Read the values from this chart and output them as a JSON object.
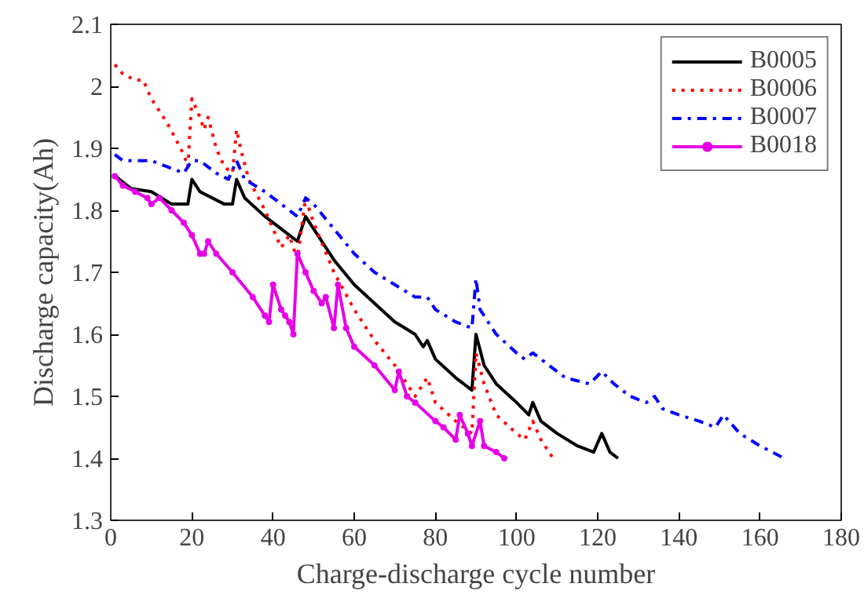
{
  "chart_data": {
    "type": "line",
    "xlabel": "Charge-discharge cycle number",
    "ylabel": "Discharge capacity(Ah)",
    "xlim": [
      0,
      180
    ],
    "xticks": [
      0,
      20,
      40,
      60,
      80,
      100,
      120,
      140,
      160,
      180
    ],
    "ylim": [
      1.3,
      2.1
    ],
    "yticks": [
      1.3,
      1.4,
      1.5,
      1.6,
      1.7,
      1.8,
      1.9,
      2,
      2.1
    ],
    "grid": false,
    "legend": "top right",
    "series": [
      {
        "name": "B0005",
        "color": "#000000",
        "line_style": "solid",
        "x": [
          1,
          5,
          10,
          15,
          19,
          20,
          22,
          28,
          30,
          31,
          33,
          38,
          42,
          46,
          48,
          50,
          55,
          60,
          65,
          70,
          75,
          77,
          78,
          80,
          85,
          89,
          90,
          92,
          95,
          100,
          103,
          104,
          106,
          110,
          115,
          119,
          121,
          123,
          125
        ],
        "values": [
          1.856,
          1.835,
          1.83,
          1.81,
          1.81,
          1.85,
          1.83,
          1.81,
          1.81,
          1.85,
          1.82,
          1.79,
          1.77,
          1.75,
          1.79,
          1.77,
          1.72,
          1.68,
          1.65,
          1.62,
          1.6,
          1.58,
          1.59,
          1.56,
          1.53,
          1.51,
          1.6,
          1.55,
          1.52,
          1.49,
          1.47,
          1.49,
          1.46,
          1.44,
          1.42,
          1.41,
          1.44,
          1.41,
          1.4
        ]
      },
      {
        "name": "B0006",
        "color": "#ff0000",
        "line_style": "dotted",
        "x": [
          1,
          3,
          6,
          8,
          10,
          14,
          18,
          19,
          20,
          22,
          23,
          24,
          26,
          28,
          30,
          31,
          32,
          34,
          38,
          42,
          44,
          46,
          48,
          50,
          55,
          60,
          65,
          70,
          75,
          78,
          80,
          85,
          89,
          90,
          92,
          95,
          100,
          102,
          104,
          106,
          109
        ],
        "values": [
          2.035,
          2.02,
          2.01,
          2.01,
          1.98,
          1.94,
          1.89,
          1.87,
          1.98,
          1.95,
          1.93,
          1.95,
          1.9,
          1.87,
          1.86,
          1.93,
          1.9,
          1.85,
          1.8,
          1.74,
          1.76,
          1.72,
          1.82,
          1.78,
          1.7,
          1.64,
          1.59,
          1.55,
          1.5,
          1.53,
          1.49,
          1.46,
          1.44,
          1.57,
          1.52,
          1.47,
          1.44,
          1.43,
          1.46,
          1.43,
          1.4
        ]
      },
      {
        "name": "B0007",
        "color": "#0000ff",
        "line_style": "dashdot",
        "x": [
          1,
          3,
          10,
          14,
          18,
          20,
          22,
          26,
          29,
          31,
          33,
          38,
          42,
          46,
          48,
          50,
          55,
          60,
          65,
          70,
          75,
          78,
          80,
          85,
          89,
          90,
          91,
          95,
          100,
          102,
          104,
          108,
          112,
          118,
          121,
          124,
          128,
          132,
          134,
          136,
          140,
          145,
          149,
          151,
          155,
          160,
          166
        ],
        "values": [
          1.89,
          1.88,
          1.88,
          1.87,
          1.86,
          1.88,
          1.88,
          1.86,
          1.85,
          1.88,
          1.85,
          1.83,
          1.81,
          1.79,
          1.82,
          1.81,
          1.77,
          1.73,
          1.7,
          1.68,
          1.66,
          1.66,
          1.64,
          1.62,
          1.61,
          1.69,
          1.64,
          1.6,
          1.57,
          1.56,
          1.57,
          1.55,
          1.53,
          1.52,
          1.54,
          1.52,
          1.5,
          1.49,
          1.5,
          1.48,
          1.47,
          1.46,
          1.45,
          1.47,
          1.44,
          1.42,
          1.4
        ]
      },
      {
        "name": "B0018",
        "color": "#e600e6",
        "line_style": "solid",
        "marker": "circle",
        "x": [
          1,
          3,
          6,
          9,
          10,
          12,
          15,
          18,
          20,
          22,
          23,
          24,
          26,
          30,
          35,
          38,
          39,
          40,
          42,
          43,
          44,
          45,
          46,
          48,
          50,
          52,
          53,
          55,
          56,
          58,
          60,
          65,
          70,
          71,
          73,
          75,
          80,
          82,
          85,
          86,
          88,
          89,
          91,
          92,
          95,
          97
        ],
        "values": [
          1.855,
          1.84,
          1.83,
          1.82,
          1.81,
          1.82,
          1.8,
          1.78,
          1.76,
          1.73,
          1.73,
          1.75,
          1.73,
          1.7,
          1.66,
          1.63,
          1.62,
          1.68,
          1.64,
          1.63,
          1.62,
          1.6,
          1.73,
          1.7,
          1.67,
          1.65,
          1.66,
          1.61,
          1.68,
          1.61,
          1.58,
          1.55,
          1.51,
          1.54,
          1.5,
          1.49,
          1.46,
          1.45,
          1.43,
          1.47,
          1.44,
          1.42,
          1.46,
          1.42,
          1.41,
          1.4
        ]
      }
    ]
  }
}
